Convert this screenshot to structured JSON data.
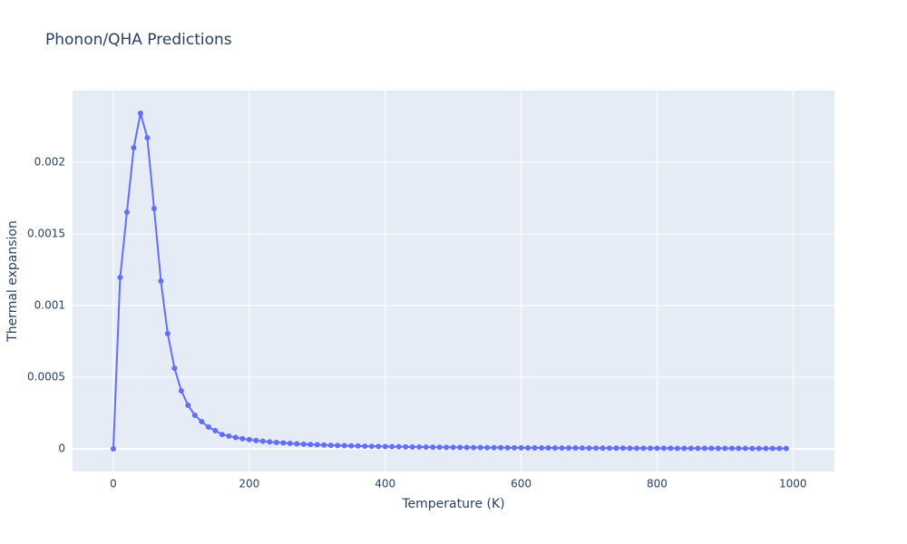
{
  "chart_data": {
    "type": "line",
    "title": "Phonon/QHA Predictions",
    "x_label": "Temperature (K)",
    "y_label": "Thermal expansion",
    "xlim": [
      -60,
      1061
    ],
    "ylim": [
      -0.000158,
      0.0025
    ],
    "xticks": [
      0,
      200,
      400,
      600,
      800,
      1000
    ],
    "yticks": [
      0,
      0.0005,
      0.001,
      0.0015,
      0.002
    ],
    "grid": true,
    "series": [
      {
        "name": "Thermal expansion",
        "color": "#636efa",
        "x": [
          0,
          10,
          20,
          30,
          40,
          50,
          60,
          70,
          80,
          90,
          100,
          110,
          120,
          130,
          140,
          150,
          160,
          170,
          180,
          190,
          200,
          210,
          220,
          230,
          240,
          250,
          260,
          270,
          280,
          290,
          300,
          310,
          320,
          330,
          340,
          350,
          360,
          370,
          380,
          390,
          400,
          410,
          420,
          430,
          440,
          450,
          460,
          470,
          480,
          490,
          500,
          510,
          520,
          530,
          540,
          550,
          560,
          570,
          580,
          590,
          600,
          610,
          620,
          630,
          640,
          650,
          660,
          670,
          680,
          690,
          700,
          710,
          720,
          730,
          740,
          750,
          760,
          770,
          780,
          790,
          800,
          810,
          820,
          830,
          840,
          850,
          860,
          870,
          880,
          890,
          900,
          910,
          920,
          930,
          940,
          950,
          960,
          970,
          980,
          990
        ],
        "values": [
          0,
          0.001196,
          0.001652,
          0.002101,
          0.002342,
          0.002171,
          0.001677,
          0.001171,
          0.000804,
          0.000563,
          0.000405,
          0.000304,
          0.000234,
          0.00019,
          0.000152,
          0.000127,
          0.0001,
          8.86e-05,
          7.9e-05,
          7.09e-05,
          6.4e-05,
          5.8e-05,
          5.29e-05,
          4.84e-05,
          4.44e-05,
          4.1e-05,
          3.79e-05,
          3.51e-05,
          3.27e-05,
          3.04e-05,
          2.84e-05,
          2.66e-05,
          2.5e-05,
          2.35e-05,
          2.21e-05,
          2.09e-05,
          1.98e-05,
          1.87e-05,
          1.77e-05,
          1.68e-05,
          1.6e-05,
          1.52e-05,
          1.45e-05,
          1.38e-05,
          1.32e-05,
          1.26e-05,
          1.21e-05,
          1.16e-05,
          1.11e-05,
          1.07e-05,
          1.02e-05,
          9.8e-06,
          9.5e-06,
          9.1e-06,
          8.8e-06,
          8.5e-06,
          8.2e-06,
          7.9e-06,
          7.6e-06,
          7.4e-06,
          7.1e-06,
          6.9e-06,
          6.7e-06,
          6.5e-06,
          6.3e-06,
          6.1e-06,
          5.9e-06,
          5.7e-06,
          5.5e-06,
          5.4e-06,
          5.2e-06,
          5.1e-06,
          4.9e-06,
          4.8e-06,
          4.7e-06,
          4.6e-06,
          4.4e-06,
          4.3e-06,
          4.2e-06,
          4.1e-06,
          4e-06,
          3.9e-06,
          3.8e-06,
          3.7e-06,
          3.6e-06,
          3.5e-06,
          3.5e-06,
          3.4e-06,
          3.3e-06,
          3.2e-06,
          3.2e-06,
          3.1e-06,
          3e-06,
          3e-06,
          2.9e-06,
          2.8e-06,
          2.8e-06,
          2.7e-06,
          2.7e-06,
          2.6e-06
        ]
      }
    ]
  }
}
